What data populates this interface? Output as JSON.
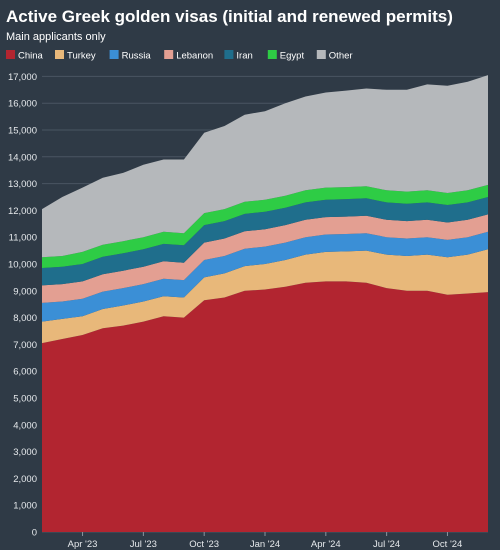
{
  "chart_data": {
    "type": "area",
    "stacked": true,
    "title": "Active Greek golden visas (initial and renewed permits)",
    "subtitle": "Main applicants only",
    "x": [
      "2023-02",
      "2023-03",
      "2023-04",
      "2023-05",
      "2023-06",
      "2023-07",
      "2023-08",
      "2023-09",
      "2023-10",
      "2023-11",
      "2023-12",
      "2024-01",
      "2024-02",
      "2024-03",
      "2024-04",
      "2024-05",
      "2024-06",
      "2024-07",
      "2024-08",
      "2024-09",
      "2024-10",
      "2024-11",
      "2024-12"
    ],
    "x_tick_labels": [
      "Apr '23",
      "Jul '23",
      "Oct '23",
      "Jan '24",
      "Apr '24",
      "Jul '24",
      "Oct '24"
    ],
    "x_tick_positions": [
      "2023-04",
      "2023-07",
      "2023-10",
      "2024-01",
      "2024-04",
      "2024-07",
      "2024-10"
    ],
    "ylim": [
      0,
      17500
    ],
    "y_ticks": [
      0,
      1000,
      2000,
      3000,
      4000,
      5000,
      6000,
      7000,
      8000,
      9000,
      10000,
      11000,
      12000,
      13000,
      14000,
      15000,
      16000,
      17000
    ],
    "y_tick_labels": [
      "0",
      "1,000",
      "2,000",
      "3,000",
      "4,000",
      "5,000",
      "6,000",
      "7,000",
      "8,000",
      "9,000",
      "10,000",
      "11,000",
      "12,000",
      "13,000",
      "14,000",
      "15,000",
      "16,000",
      "17,000"
    ],
    "grid": "horizontal",
    "legend_position": "top-left",
    "series": [
      {
        "name": "China",
        "color": "#b22530",
        "values": [
          7050,
          7200,
          7350,
          7600,
          7700,
          7850,
          8050,
          8000,
          8650,
          8750,
          9000,
          9050,
          9150,
          9300,
          9350,
          9350,
          9300,
          9100,
          9000,
          9000,
          8850,
          8900,
          8950
        ]
      },
      {
        "name": "Turkey",
        "color": "#e8b87a",
        "values": [
          800,
          750,
          700,
          720,
          750,
          750,
          750,
          750,
          850,
          900,
          920,
          950,
          1000,
          1050,
          1100,
          1120,
          1200,
          1250,
          1300,
          1350,
          1400,
          1450,
          1600
        ]
      },
      {
        "name": "Russia",
        "color": "#3b8fd6",
        "values": [
          700,
          650,
          650,
          650,
          650,
          650,
          650,
          650,
          650,
          650,
          650,
          650,
          650,
          650,
          650,
          650,
          650,
          650,
          650,
          650,
          650,
          650,
          650
        ]
      },
      {
        "name": "Lebanon",
        "color": "#e39f92",
        "values": [
          650,
          650,
          650,
          650,
          650,
          650,
          650,
          650,
          650,
          650,
          650,
          650,
          650,
          650,
          650,
          650,
          650,
          650,
          650,
          650,
          650,
          650,
          650
        ]
      },
      {
        "name": "Iran",
        "color": "#1f6e8c",
        "values": [
          650,
          650,
          650,
          650,
          650,
          650,
          650,
          650,
          650,
          650,
          650,
          650,
          650,
          650,
          650,
          650,
          650,
          650,
          650,
          650,
          650,
          650,
          650
        ]
      },
      {
        "name": "Egypt",
        "color": "#2ecc45",
        "values": [
          400,
          400,
          450,
          450,
          450,
          450,
          450,
          450,
          450,
          450,
          450,
          450,
          450,
          450,
          450,
          450,
          450,
          450,
          450,
          450,
          450,
          450,
          450
        ]
      },
      {
        "name": "Other",
        "color": "#b5b8bb",
        "values": [
          1800,
          2200,
          2400,
          2500,
          2550,
          2700,
          2700,
          2750,
          3000,
          3100,
          3250,
          3300,
          3450,
          3500,
          3550,
          3600,
          3650,
          3750,
          3800,
          3950,
          4000,
          4050,
          4100
        ]
      }
    ]
  }
}
